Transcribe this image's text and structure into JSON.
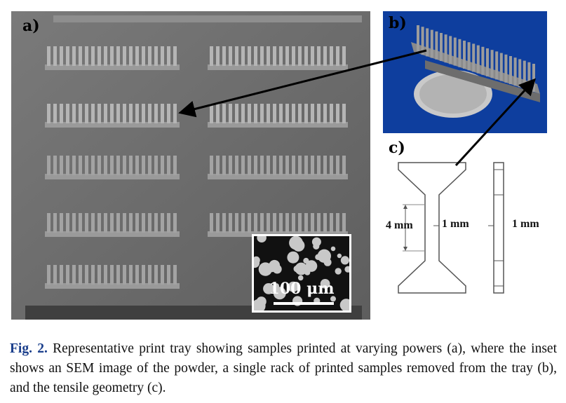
{
  "panels": {
    "a": {
      "label": "a)",
      "inset_scale": "100 μm"
    },
    "b": {
      "label": "b)"
    },
    "c": {
      "label": "c)",
      "dim_length": "4 mm",
      "dim_width": "1 mm",
      "dim_thickness": "1 mm"
    }
  },
  "caption": {
    "fig_label": "Fig. 2.",
    "text": " Representative print tray showing samples printed at varying powers (a), where the inset shows an SEM image of the powder, a single rack of printed samples removed from the tray (b), and the tensile geometry (c)."
  }
}
